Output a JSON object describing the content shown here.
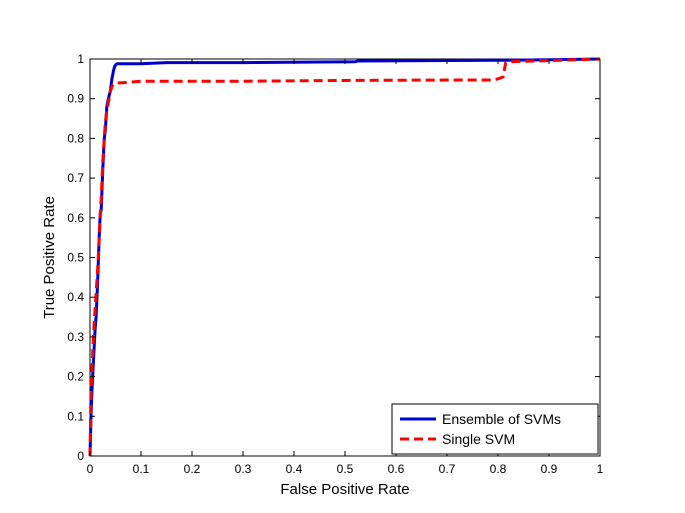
{
  "chart_data": {
    "type": "line",
    "title": "",
    "xlabel": "False Positive Rate",
    "ylabel": "True Positive Rate",
    "xlim": [
      0,
      1
    ],
    "ylim": [
      0,
      1
    ],
    "xticks": [
      "0",
      "0.1",
      "0.2",
      "0.3",
      "0.4",
      "0.5",
      "0.6",
      "0.7",
      "0.8",
      "0.9",
      "1"
    ],
    "yticks": [
      "0",
      "0.1",
      "0.2",
      "0.3",
      "0.4",
      "0.5",
      "0.6",
      "0.7",
      "0.8",
      "0.9",
      "1"
    ],
    "grid": false,
    "legend": "bottom-right",
    "series": [
      {
        "name": "Ensemble of SVMs",
        "color": "#0000cc",
        "style": "solid",
        "x": [
          0,
          0.002,
          0.004,
          0.006,
          0.008,
          0.01,
          0.012,
          0.015,
          0.018,
          0.02,
          0.022,
          0.025,
          0.028,
          0.03,
          0.033,
          0.036,
          0.04,
          0.043,
          0.046,
          0.048,
          0.05,
          0.053,
          0.06,
          0.1,
          0.15,
          0.3,
          0.52,
          0.525,
          0.8,
          0.82,
          0.9,
          1.0
        ],
        "y": [
          0,
          0.1,
          0.17,
          0.22,
          0.27,
          0.32,
          0.35,
          0.44,
          0.55,
          0.61,
          0.62,
          0.72,
          0.8,
          0.82,
          0.88,
          0.9,
          0.92,
          0.95,
          0.97,
          0.98,
          0.985,
          0.988,
          0.988,
          0.988,
          0.991,
          0.991,
          0.993,
          0.995,
          0.997,
          0.997,
          0.998,
          1.0
        ]
      },
      {
        "name": "Single SVM",
        "color": "#ff0000",
        "style": "dashed",
        "x": [
          0,
          0.002,
          0.004,
          0.006,
          0.008,
          0.01,
          0.012,
          0.015,
          0.018,
          0.02,
          0.022,
          0.025,
          0.028,
          0.03,
          0.033,
          0.036,
          0.04,
          0.045,
          0.05,
          0.06,
          0.1,
          0.3,
          0.5,
          0.7,
          0.79,
          0.8,
          0.81,
          0.815,
          0.82,
          0.9,
          1.0
        ],
        "y": [
          0,
          0.17,
          0.22,
          0.28,
          0.33,
          0.37,
          0.41,
          0.47,
          0.55,
          0.6,
          0.65,
          0.74,
          0.8,
          0.84,
          0.87,
          0.89,
          0.92,
          0.935,
          0.94,
          0.94,
          0.944,
          0.944,
          0.946,
          0.947,
          0.947,
          0.95,
          0.955,
          0.99,
          0.993,
          0.996,
          1.0
        ]
      }
    ]
  }
}
